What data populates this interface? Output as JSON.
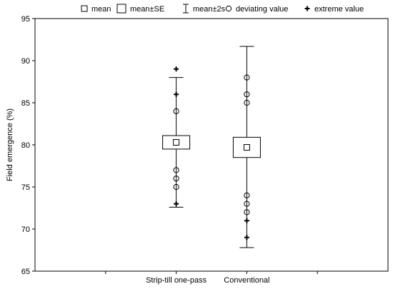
{
  "chart_data": {
    "type": "box",
    "title": "",
    "xlabel": "",
    "ylabel": "Field emergence (%)",
    "ylim": [
      65,
      95
    ],
    "yticks": [
      65,
      70,
      75,
      80,
      85,
      90,
      95
    ],
    "grid": false,
    "legend_position": "top",
    "legend": [
      {
        "symbol": "square-small",
        "label": "mean"
      },
      {
        "symbol": "square-large",
        "label": "mean±SE"
      },
      {
        "symbol": "whisker",
        "label": "mean±2s"
      },
      {
        "symbol": "circle",
        "label": "deviating value"
      },
      {
        "symbol": "plus",
        "label": "extreme value"
      }
    ],
    "categories": [
      "Strip-till one-pass",
      "Conventional"
    ],
    "groups": [
      {
        "category": "Strip-till one-pass",
        "mean": 80.3,
        "se_low": 79.5,
        "se_high": 81.1,
        "sd2_low": 72.6,
        "sd2_high": 88.0,
        "deviating": [
          84,
          77,
          76,
          75
        ],
        "extreme": [
          89,
          86,
          73
        ]
      },
      {
        "category": "Conventional",
        "mean": 79.7,
        "se_low": 78.5,
        "se_high": 80.9,
        "sd2_low": 67.8,
        "sd2_high": 91.7,
        "deviating": [
          88,
          86,
          85,
          74,
          73,
          72
        ],
        "extreme": [
          71,
          69
        ]
      }
    ]
  }
}
